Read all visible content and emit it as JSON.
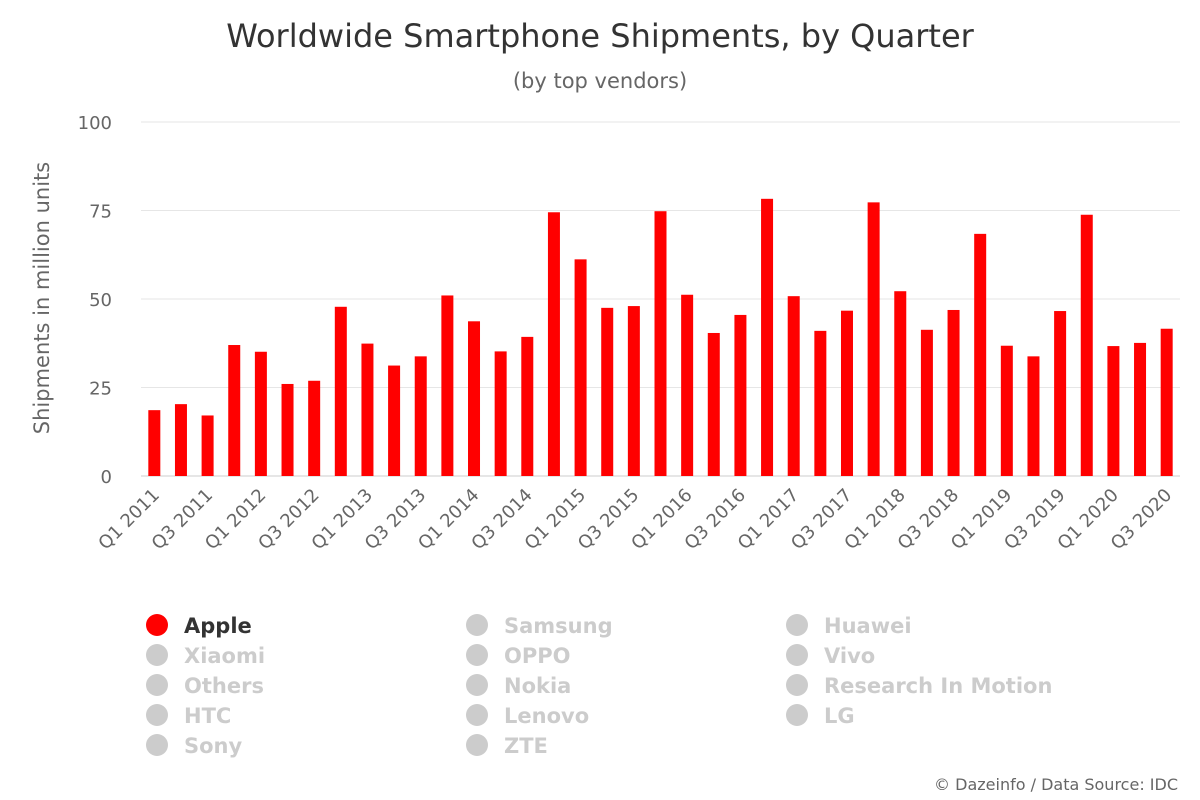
{
  "chart_data": {
    "type": "bar",
    "title": "Worldwide Smartphone Shipments, by Quarter",
    "subtitle": "(by top vendors)",
    "ylabel": "Shipments in million units",
    "xlabel": "",
    "ylim": [
      0,
      100
    ],
    "yticks": [
      "0",
      "25",
      "50",
      "75",
      "100"
    ],
    "ytick_values": [
      0,
      25,
      50,
      75,
      100
    ],
    "grid": true,
    "legend_position": "bottom",
    "categories": [
      "Q1 2011",
      "Q2 2011",
      "Q3 2011",
      "Q4 2011",
      "Q1 2012",
      "Q2 2012",
      "Q3 2012",
      "Q4 2012",
      "Q1 2013",
      "Q2 2013",
      "Q3 2013",
      "Q4 2013",
      "Q1 2014",
      "Q2 2014",
      "Q3 2014",
      "Q4 2014",
      "Q1 2015",
      "Q2 2015",
      "Q3 2015",
      "Q4 2015",
      "Q1 2016",
      "Q2 2016",
      "Q3 2016",
      "Q4 2016",
      "Q1 2017",
      "Q2 2017",
      "Q3 2017",
      "Q4 2017",
      "Q1 2018",
      "Q2 2018",
      "Q3 2018",
      "Q4 2018",
      "Q1 2019",
      "Q2 2019",
      "Q3 2019",
      "Q4 2019",
      "Q1 2020",
      "Q2 2020",
      "Q3 2020"
    ],
    "xtick_labels": [
      "Q1 2011",
      "Q3 2011",
      "Q1 2012",
      "Q3 2012",
      "Q1 2013",
      "Q3 2013",
      "Q1 2014",
      "Q3 2014",
      "Q1 2015",
      "Q3 2015",
      "Q1 2016",
      "Q3 2016",
      "Q1 2017",
      "Q3 2017",
      "Q1 2018",
      "Q3 2018",
      "Q1 2019",
      "Q3 2019",
      "Q1 2020",
      "Q3 2020"
    ],
    "series": [
      {
        "name": "Apple",
        "color": "#ff0000",
        "visible": true,
        "values": [
          18.6,
          20.3,
          17.1,
          37.0,
          35.1,
          26.0,
          26.9,
          47.8,
          37.4,
          31.2,
          33.8,
          51.0,
          43.7,
          35.2,
          39.3,
          74.5,
          61.2,
          47.5,
          48.0,
          74.8,
          51.2,
          40.4,
          45.5,
          78.3,
          50.8,
          41.0,
          46.7,
          77.3,
          52.2,
          41.3,
          46.9,
          68.4,
          36.8,
          33.8,
          46.6,
          73.8,
          36.7,
          37.6,
          41.6
        ]
      },
      {
        "name": "Samsung",
        "visible": false
      },
      {
        "name": "Huawei",
        "visible": false
      },
      {
        "name": "Xiaomi",
        "visible": false
      },
      {
        "name": "OPPO",
        "visible": false
      },
      {
        "name": "Vivo",
        "visible": false
      },
      {
        "name": "Others",
        "visible": false
      },
      {
        "name": "Nokia",
        "visible": false
      },
      {
        "name": "Research In Motion",
        "visible": false
      },
      {
        "name": "HTC",
        "visible": false
      },
      {
        "name": "Lenovo",
        "visible": false
      },
      {
        "name": "LG",
        "visible": false
      },
      {
        "name": "Sony",
        "visible": false
      },
      {
        "name": "ZTE",
        "visible": false
      }
    ]
  },
  "colors": {
    "active": "#ff0000",
    "inactive": "#cccccc",
    "active_text": "#333333",
    "inactive_text": "#cccccc"
  },
  "credit": "© Dazeinfo / Data Source: IDC"
}
